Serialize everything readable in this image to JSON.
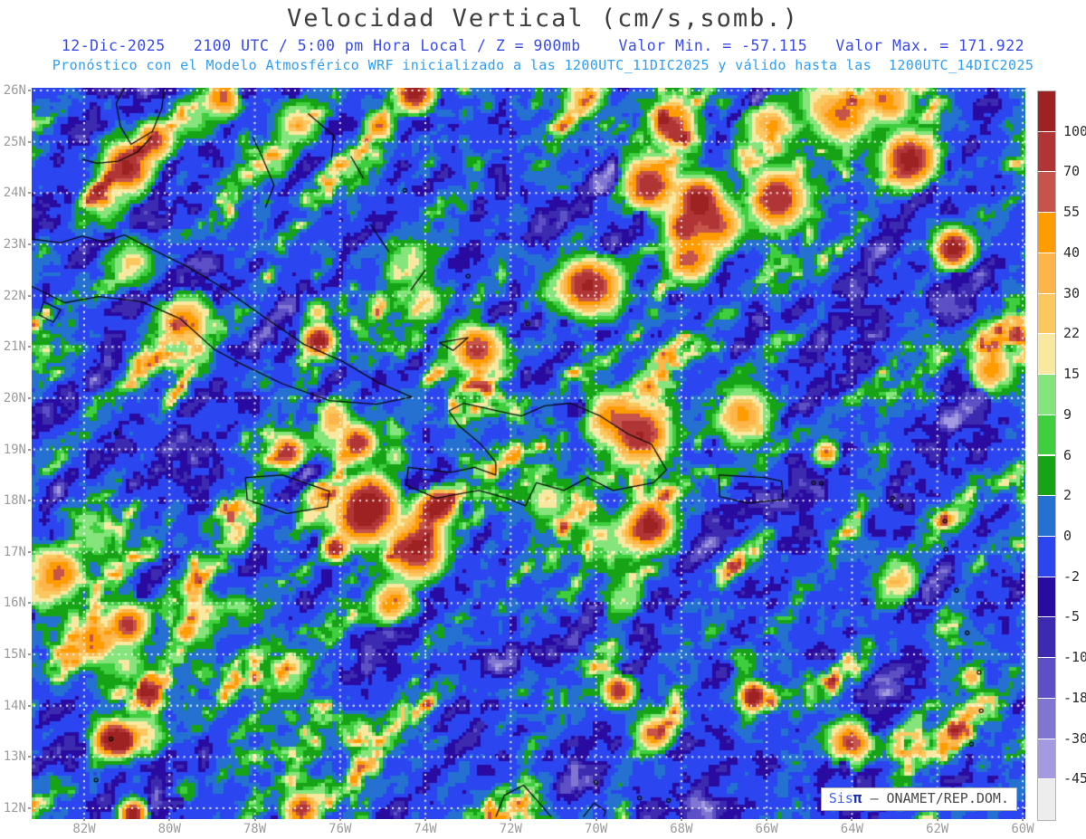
{
  "header": {
    "title": "Velocidad Vertical (cm/s,somb.)",
    "line1": "12-Dic-2025   2100 UTC / 5:00 pm Hora Local / Z = 900mb    Valor Min. = -57.115   Valor Max. = 171.922",
    "line2": "Pronóstico con el Modelo Atmosférico WRF inicializado a las 1200UTC_11DIC2025 y válido hasta las  1200UTC_14DIC2025"
  },
  "axes": {
    "lat_ticks": [
      "26N",
      "25N",
      "24N",
      "23N",
      "22N",
      "21N",
      "20N",
      "19N",
      "18N",
      "17N",
      "16N",
      "15N",
      "14N",
      "13N",
      "12N"
    ],
    "lon_ticks": [
      "82W",
      "80W",
      "78W",
      "76W",
      "74W",
      "72W",
      "70W",
      "68W",
      "66W",
      "64W",
      "62W",
      "60W"
    ]
  },
  "colorbar": {
    "tick_labels": [
      "100",
      "70",
      "55",
      "40",
      "30",
      "22",
      "15",
      "9",
      "6",
      "2",
      "0",
      "-2",
      "-5",
      "-10",
      "-18",
      "-30",
      "-45"
    ],
    "levels": [
      100,
      70,
      55,
      40,
      30,
      22,
      15,
      9,
      6,
      2,
      0,
      -2,
      -5,
      -10,
      -18,
      -30,
      -45
    ],
    "colors_top_to_bottom": [
      "#9e2222",
      "#b23535",
      "#c6544a",
      "#fe9c00",
      "#fdb448",
      "#fbc860",
      "#f9e9a0",
      "#86e47c",
      "#3ece3e",
      "#16a316",
      "#2471d2",
      "#2b46f0",
      "#2a0ba2",
      "#3c2bb0",
      "#5d50c6",
      "#8076d2",
      "#a39ae2",
      "#ededed"
    ]
  },
  "watermark": {
    "sis": "Sis",
    "pi": "π",
    "rest": " – ONAMET/REP.DOM."
  },
  "chart_data": {
    "type": "heatmap",
    "title": "Velocidad Vertical (cm/s,somb.)",
    "units": "cm/s",
    "level": "900mb",
    "valid_date": "12-Dic-2025",
    "valid_time": "2100 UTC / 5:00 pm Hora Local",
    "model": "WRF",
    "initialized": "1200UTC_11DIC2025",
    "valid_until": "1200UTC_14DIC2025",
    "value_min": -57.115,
    "value_max": 171.922,
    "x_tick_labels": [
      "82W",
      "80W",
      "78W",
      "76W",
      "74W",
      "72W",
      "70W",
      "68W",
      "66W",
      "64W",
      "62W",
      "60W"
    ],
    "y_tick_labels": [
      "26N",
      "25N",
      "24N",
      "23N",
      "22N",
      "21N",
      "20N",
      "19N",
      "18N",
      "17N",
      "16N",
      "15N",
      "14N",
      "13N",
      "12N"
    ],
    "lon_range_deg_west": [
      83.23,
      59.94
    ],
    "lat_range_deg_north": [
      11.82,
      26.05
    ],
    "color_levels": [
      100,
      70,
      55,
      40,
      30,
      22,
      15,
      9,
      6,
      2,
      0,
      -2,
      -5,
      -10,
      -18,
      -30,
      -45
    ],
    "palette_top_to_bottom": [
      "#9e2222",
      "#b23535",
      "#c6544a",
      "#fe9c00",
      "#fdb448",
      "#fbc860",
      "#f9e9a0",
      "#86e47c",
      "#3ece3e",
      "#16a316",
      "#2471d2",
      "#2b46f0",
      "#2a0ba2",
      "#3c2bb0",
      "#5d50c6",
      "#8076d2",
      "#a39ae2",
      "#ededed"
    ],
    "grid": true,
    "grid_style": "white dotted, 1° latitude x 2° longitude",
    "colorbar_position": "right"
  }
}
